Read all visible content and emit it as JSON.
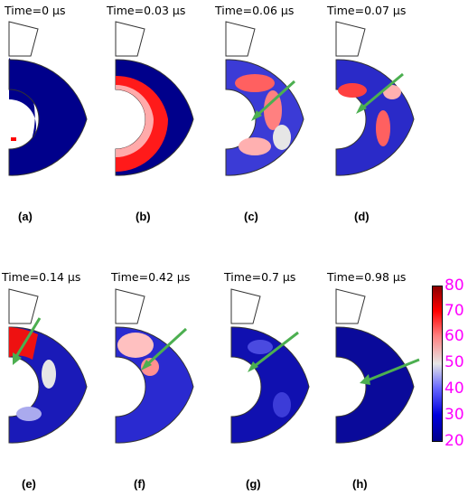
{
  "figure": {
    "panels": [
      {
        "id": "a",
        "time_label": "Time=0 μs",
        "panel_label": "(a)",
        "stress_level": "low",
        "arrow": false
      },
      {
        "id": "b",
        "time_label": "Time=0.03 μs",
        "panel_label": "(b)",
        "stress_level": "wave-front",
        "arrow": false
      },
      {
        "id": "c",
        "time_label": "Time=0.06 μs",
        "panel_label": "(c)",
        "stress_level": "high",
        "arrow": true
      },
      {
        "id": "d",
        "time_label": "Time=0.07 μs",
        "panel_label": "(d)",
        "stress_level": "high",
        "arrow": true
      },
      {
        "id": "e",
        "time_label": "Time=0.14 μs",
        "panel_label": "(e)",
        "stress_level": "mixed",
        "arrow": true
      },
      {
        "id": "f",
        "time_label": "Time=0.42 μs",
        "panel_label": "(f)",
        "stress_level": "medium",
        "arrow": true
      },
      {
        "id": "g",
        "time_label": "Time=0.7 μs",
        "panel_label": "(g)",
        "stress_level": "low",
        "arrow": true
      },
      {
        "id": "h",
        "time_label": "Time=0.98 μs",
        "panel_label": "(h)",
        "stress_level": "low",
        "arrow": true
      }
    ],
    "colorbar": {
      "ticks": [
        "80",
        "70",
        "60",
        "50",
        "40",
        "30",
        "20"
      ],
      "tick_color": "#ff00ff",
      "range": [
        20,
        80
      ],
      "colors": [
        "#8b0000",
        "#ff0000",
        "#ff8080",
        "#e6e6e6",
        "#6666ff",
        "#0000dd",
        "#00008b"
      ]
    },
    "colors": {
      "arrow": "#4caf50",
      "low": "#00008b",
      "outline": "#333333"
    }
  }
}
